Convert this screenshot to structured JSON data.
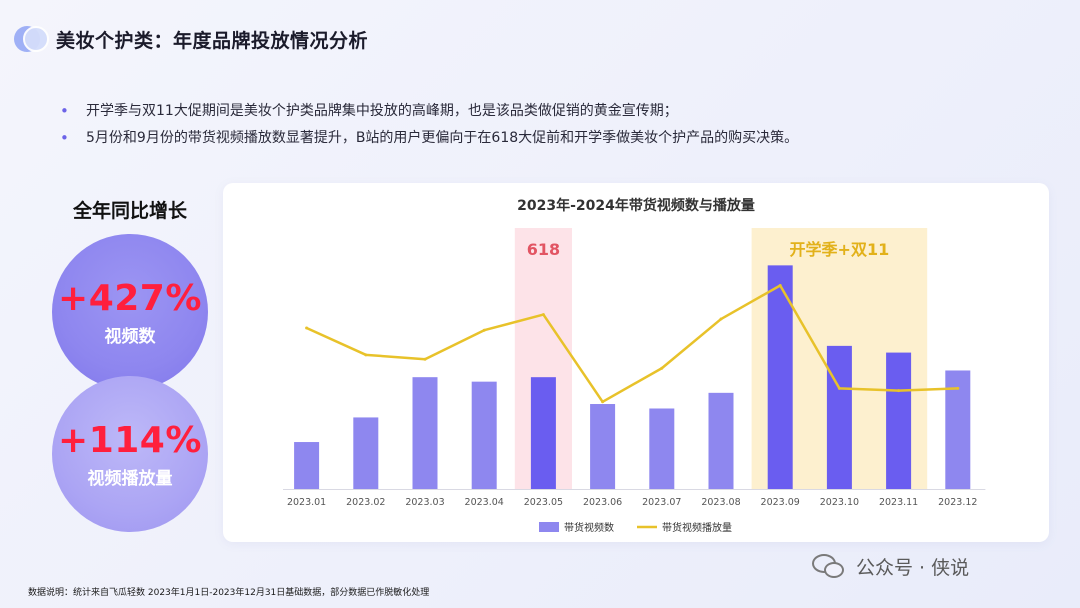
{
  "header": {
    "title": "美妆个护类：年度品牌投放情况分析"
  },
  "bullets": [
    "开学季与双11大促期间是美妆个护类品牌集中投放的高峰期，也是该品类做促销的黄金宣传期；",
    "5月份和9月份的带货视频播放数显著提升，B站的用户更偏向于在618大促前和开学季做美妆个护产品的购买决策。"
  ],
  "growth": {
    "title": "全年同比增长",
    "items": [
      {
        "value": "+427%",
        "label": "视频数"
      },
      {
        "value": "+114%",
        "label": "视频播放量"
      }
    ]
  },
  "chart_data": {
    "type": "bar",
    "title": "2023年-2024年带货视频数与播放量",
    "categories": [
      "2023.01",
      "2023.02",
      "2023.03",
      "2023.04",
      "2023.05",
      "2023.06",
      "2023.07",
      "2023.08",
      "2023.09",
      "2023.10",
      "2023.11",
      "2023.12"
    ],
    "series": [
      {
        "name": "带货视频数",
        "kind": "bar",
        "color": "#8e87ef",
        "highlight_color": "#6a5df0",
        "highlighted_categories": [
          "2023.05",
          "2023.09",
          "2023.10",
          "2023.11"
        ],
        "values": [
          21,
          32,
          50,
          48,
          50,
          38,
          36,
          43,
          100,
          64,
          61,
          53
        ]
      },
      {
        "name": "带货视频播放量",
        "kind": "line",
        "color": "#e8c22a",
        "values": [
          72,
          60,
          58,
          71,
          78,
          39,
          54,
          76,
          91,
          45,
          44,
          45
        ]
      }
    ],
    "ylim": [
      0,
      110
    ],
    "axes_hidden": true,
    "legend": "bottom-center",
    "annotations": [
      {
        "label": "618",
        "span": [
          "2023.05",
          "2023.05"
        ],
        "color": "#fde3e8",
        "text_color": "#e25563"
      },
      {
        "label": "开学季+双11",
        "span": [
          "2023.09",
          "2023.11"
        ],
        "color": "#fdf0cf",
        "text_color": "#e2b11a"
      }
    ]
  },
  "footnote": "数据说明：统计来自飞瓜轻数 2023年1月1日-2023年12月31日基础数据，部分数据已作脱敏化处理",
  "watermark": "公众号 · 侠说"
}
